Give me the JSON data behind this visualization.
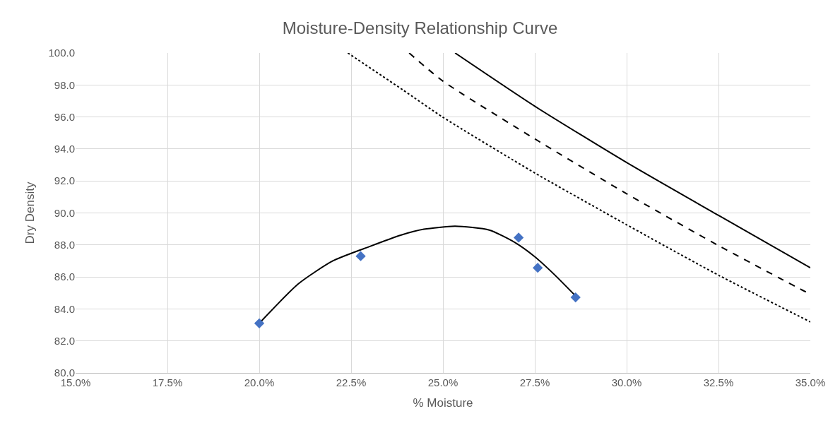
{
  "chart_data": {
    "type": "scatter",
    "title": "Moisture-Density Relationship Curve",
    "xlabel": "% Moisture",
    "ylabel": "Dry Density",
    "xlim": [
      15,
      35
    ],
    "ylim": [
      80,
      100
    ],
    "xticks": [
      {
        "value": 15,
        "label": "15.0%"
      },
      {
        "value": 17.5,
        "label": "17.5%"
      },
      {
        "value": 20,
        "label": "20.0%"
      },
      {
        "value": 22.5,
        "label": "22.5%"
      },
      {
        "value": 25,
        "label": "25.0%"
      },
      {
        "value": 27.5,
        "label": "27.5%"
      },
      {
        "value": 30,
        "label": "30.0%"
      },
      {
        "value": 32.5,
        "label": "32.5%"
      },
      {
        "value": 35,
        "label": "35.0%"
      }
    ],
    "yticks": [
      {
        "value": 80,
        "label": "80.0"
      },
      {
        "value": 82,
        "label": "82.0"
      },
      {
        "value": 84,
        "label": "84.0"
      },
      {
        "value": 86,
        "label": "86.0"
      },
      {
        "value": 88,
        "label": "88.0"
      },
      {
        "value": 90,
        "label": "90.0"
      },
      {
        "value": 92,
        "label": "92.0"
      },
      {
        "value": 94,
        "label": "94.0"
      },
      {
        "value": 96,
        "label": "96.0"
      },
      {
        "value": 98,
        "label": "98.0"
      },
      {
        "value": 100,
        "label": "100.0"
      }
    ],
    "grid": true,
    "series": [
      {
        "type": "line",
        "color": "#000000",
        "line_style": "solid",
        "marker": "none",
        "x": [
          20.0,
          21.06,
          22.0,
          23.0,
          23.85,
          24.48,
          25.33,
          26.26,
          26.96,
          27.5,
          28.05,
          28.61
        ],
        "values": [
          83.1,
          85.56,
          87.0,
          87.9,
          88.61,
          88.98,
          89.17,
          88.93,
          88.15,
          87.26,
          86.11,
          84.81
        ]
      },
      {
        "color": "#4472c4",
        "marker": "diamond",
        "x": [
          20.0,
          22.76,
          27.06,
          27.58,
          28.61
        ],
        "values": [
          83.1,
          87.3,
          88.46,
          86.57,
          84.72
        ]
      },
      {
        "type": "line",
        "color": "#000000",
        "line_style": "solid",
        "marker": "none",
        "x": [
          25.33,
          27.5,
          30.0,
          32.5,
          35.0
        ],
        "values": [
          100,
          96.67,
          93.15,
          89.85,
          86.57
        ]
      },
      {
        "type": "line",
        "color": "#000000",
        "line_style": "dashed",
        "marker": "none",
        "x": [
          24.08,
          25.0,
          27.5,
          30.0,
          32.5,
          35.0
        ],
        "values": [
          100,
          98.24,
          94.63,
          91.2,
          87.96,
          84.91
        ]
      },
      {
        "type": "line",
        "color": "#000000",
        "line_style": "dotted",
        "marker": "none",
        "x": [
          22.41,
          23.91,
          25.0,
          27.5,
          30.0,
          32.5,
          35.0
        ],
        "values": [
          100,
          97.69,
          95.98,
          92.5,
          89.26,
          86.11,
          83.19
        ]
      }
    ]
  }
}
